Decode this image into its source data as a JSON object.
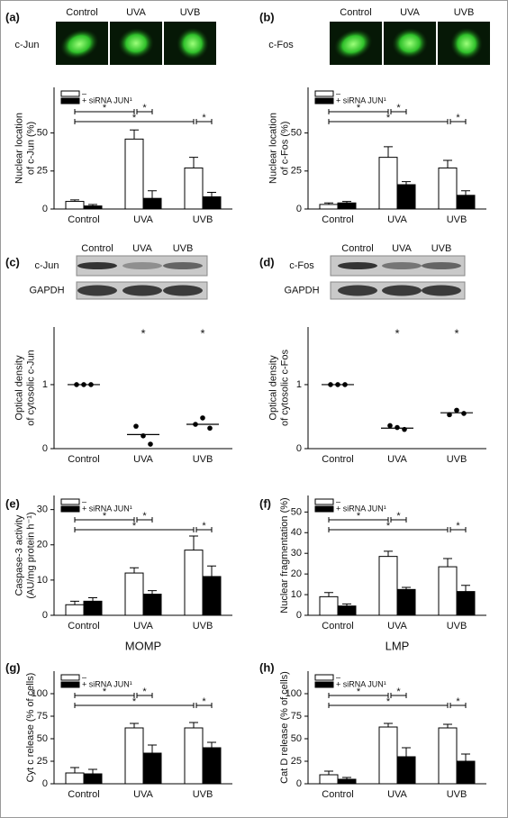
{
  "panel_labels": [
    "(a)",
    "(b)",
    "(c)",
    "(d)",
    "(e)",
    "(f)",
    "(g)",
    "(h)"
  ],
  "micrographs": [
    {
      "protein": "c-Jun",
      "labels": [
        "Control",
        "UVA",
        "UVB"
      ]
    },
    {
      "protein": "c-Fos",
      "labels": [
        "Control",
        "UVA",
        "UVB"
      ]
    }
  ],
  "blots": [
    {
      "labels": [
        "Control",
        "UVA",
        "UVB"
      ],
      "rows": [
        "c-Jun",
        "GAPDH"
      ]
    },
    {
      "labels": [
        "Control",
        "UVA",
        "UVB"
      ],
      "rows": [
        "c-Fos",
        "GAPDH"
      ]
    }
  ],
  "chart_data": [
    {
      "type": "bar",
      "ylabel": [
        "Nuclear location",
        "of c-Jun (%)"
      ],
      "categories": [
        "Control",
        "UVA",
        "UVB"
      ],
      "series": [
        {
          "name": "–",
          "color": "#ffffff",
          "values": [
            5,
            46,
            27
          ],
          "errors": [
            1,
            6,
            7
          ]
        },
        {
          "name": "+ siRNA JUN¹",
          "color": "#000000",
          "values": [
            2,
            7,
            8
          ],
          "errors": [
            1,
            5,
            3
          ]
        }
      ],
      "ylim": [
        0,
        80
      ],
      "yticks": [
        0,
        25,
        50
      ],
      "annotations": [
        "*",
        "*",
        "*",
        "*"
      ]
    },
    {
      "type": "bar",
      "ylabel": [
        "Nuclear location",
        "of c-Fos (%)"
      ],
      "categories": [
        "Control",
        "UVA",
        "UVB"
      ],
      "series": [
        {
          "name": "–",
          "color": "#ffffff",
          "values": [
            3,
            34,
            27
          ],
          "errors": [
            1,
            7,
            5
          ]
        },
        {
          "name": "+ siRNA JUN¹",
          "color": "#000000",
          "values": [
            4,
            16,
            9
          ],
          "errors": [
            1,
            2,
            3
          ]
        }
      ],
      "ylim": [
        0,
        80
      ],
      "yticks": [
        0,
        25,
        50
      ],
      "annotations": [
        "*",
        "*",
        "*",
        "*"
      ]
    },
    {
      "type": "dot",
      "ylabel": [
        "Optical density",
        "of cytosolic c-Jun"
      ],
      "categories": [
        "Control",
        "UVA",
        "UVB"
      ],
      "points": [
        [
          1,
          1,
          1
        ],
        [
          0.35,
          0.2,
          0.07
        ],
        [
          0.38,
          0.48,
          0.32
        ]
      ],
      "medians": [
        1,
        0.22,
        0.38
      ],
      "color": "#000000",
      "ylim": [
        0,
        1.9
      ],
      "yticks": [
        0,
        1
      ],
      "annotations": [
        "*",
        "*"
      ]
    },
    {
      "type": "dot",
      "ylabel": [
        "Optical density",
        "of cytosolic c-Fos"
      ],
      "categories": [
        "Control",
        "UVA",
        "UVB"
      ],
      "points": [
        [
          1,
          1,
          1
        ],
        [
          0.36,
          0.33,
          0.3
        ],
        [
          0.53,
          0.6,
          0.55
        ]
      ],
      "medians": [
        1,
        0.32,
        0.56
      ],
      "color": "#000000",
      "ylim": [
        0,
        1.9
      ],
      "yticks": [
        0,
        1
      ],
      "annotations": [
        "*",
        "*"
      ]
    },
    {
      "type": "bar",
      "ylabel": [
        "Caspase-3 activity",
        "(AU/mg protein h⁻¹)"
      ],
      "categories": [
        "Control",
        "UVA",
        "UVB"
      ],
      "series": [
        {
          "name": "–",
          "color": "#ffffff",
          "values": [
            3,
            12,
            18.5
          ],
          "errors": [
            1,
            1.5,
            4
          ]
        },
        {
          "name": "+ siRNA JUN¹",
          "color": "#000000",
          "values": [
            4,
            6,
            11
          ],
          "errors": [
            1,
            1,
            3
          ]
        }
      ],
      "ylim": [
        0,
        34
      ],
      "yticks": [
        0,
        10,
        20,
        30
      ],
      "annotations": [
        "*",
        "*",
        "*",
        "*"
      ]
    },
    {
      "type": "bar",
      "ylabel": [
        "Nuclear fragmentation (%)"
      ],
      "categories": [
        "Control",
        "UVA",
        "UVB"
      ],
      "series": [
        {
          "name": "–",
          "color": "#ffffff",
          "values": [
            9,
            28.5,
            23.5
          ],
          "errors": [
            2,
            2.5,
            4
          ]
        },
        {
          "name": "+ siRNA JUN¹",
          "color": "#000000",
          "values": [
            4.5,
            12.5,
            11.5
          ],
          "errors": [
            1,
            1,
            3
          ]
        }
      ],
      "ylim": [
        0,
        58
      ],
      "yticks": [
        0,
        10,
        20,
        30,
        40,
        50
      ],
      "annotations": [
        "*",
        "*",
        "*",
        "*"
      ]
    },
    {
      "type": "bar",
      "title": "MOMP",
      "ylabel": [
        "Cyt c release (% of cells)"
      ],
      "categories": [
        "Control",
        "UVA",
        "UVB"
      ],
      "series": [
        {
          "name": "–",
          "color": "#ffffff",
          "values": [
            12,
            62,
            62
          ],
          "errors": [
            6,
            5,
            6
          ]
        },
        {
          "name": "+ siRNA JUN¹",
          "color": "#000000",
          "values": [
            11,
            34,
            40
          ],
          "errors": [
            5,
            9,
            6
          ]
        }
      ],
      "ylim": [
        0,
        125
      ],
      "yticks": [
        0,
        25,
        50,
        75,
        100
      ],
      "annotations": [
        "*",
        "*",
        "*",
        "*"
      ]
    },
    {
      "type": "bar",
      "title": "LMP",
      "ylabel": [
        "Cat D release (% of cells)"
      ],
      "categories": [
        "Control",
        "UVA",
        "UVB"
      ],
      "series": [
        {
          "name": "–",
          "color": "#ffffff",
          "values": [
            10,
            63,
            62
          ],
          "errors": [
            4,
            4,
            4
          ]
        },
        {
          "name": "+ siRNA JUN¹",
          "color": "#000000",
          "values": [
            5,
            30,
            25
          ],
          "errors": [
            2,
            10,
            8
          ]
        }
      ],
      "ylim": [
        0,
        125
      ],
      "yticks": [
        0,
        25,
        50,
        75,
        100
      ],
      "annotations": [
        "*",
        "*",
        "*",
        "*"
      ]
    }
  ]
}
